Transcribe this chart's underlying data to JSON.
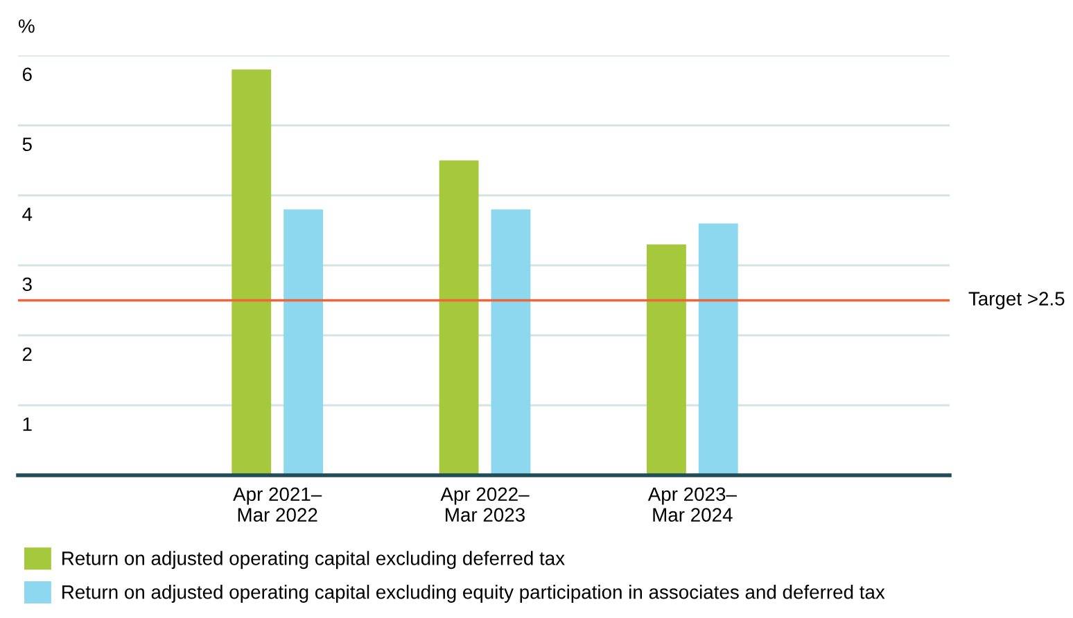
{
  "chart_data": {
    "type": "bar",
    "ylabel": "%",
    "categories": [
      "Apr 2021–\nMar 2022",
      "Apr 2022–\nMar 2023",
      "Apr 2023–\nMar 2024"
    ],
    "series": [
      {
        "name": "Return on adjusted operating capital excluding deferred tax",
        "color": "#a6c83c",
        "values": [
          5.8,
          4.5,
          3.3
        ]
      },
      {
        "name": "Return on adjusted operating capital excluding equity participation in associates and deferred tax",
        "color": "#8dd8ee",
        "values": [
          3.8,
          3.8,
          3.6
        ]
      }
    ],
    "ylim": [
      0,
      6
    ],
    "yticks": [
      1,
      2,
      3,
      4,
      5,
      6
    ],
    "grid": "y",
    "legend": "bottom left",
    "ref_lines": [
      {
        "axis": "y",
        "value": 2.5,
        "label": "Target >2.5",
        "color": "#f0643c"
      }
    ]
  }
}
